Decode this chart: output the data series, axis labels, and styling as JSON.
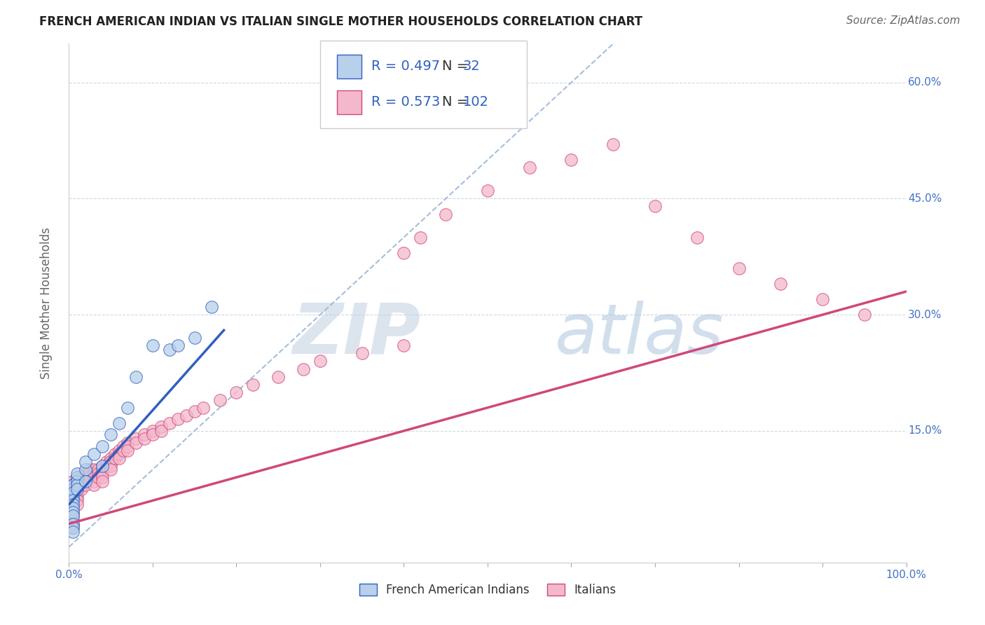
{
  "title": "FRENCH AMERICAN INDIAN VS ITALIAN SINGLE MOTHER HOUSEHOLDS CORRELATION CHART",
  "source": "Source: ZipAtlas.com",
  "ylabel": "Single Mother Households",
  "xlim": [
    0.0,
    1.0
  ],
  "ylim": [
    -0.02,
    0.65
  ],
  "xticks": [
    0.0,
    0.1,
    0.2,
    0.3,
    0.4,
    0.5,
    0.6,
    0.7,
    0.8,
    0.9,
    1.0
  ],
  "yticks": [
    0.0,
    0.15,
    0.3,
    0.45,
    0.6
  ],
  "ytick_labels": [
    "",
    "15.0%",
    "30.0%",
    "45.0%",
    "60.0%"
  ],
  "xtick_labels": [
    "0.0%",
    "",
    "",
    "",
    "",
    "",
    "",
    "",
    "",
    "",
    "100.0%"
  ],
  "blue_R": 0.497,
  "blue_N": 32,
  "pink_R": 0.573,
  "pink_N": 102,
  "blue_color": "#b8d0ea",
  "pink_color": "#f4b8cc",
  "blue_line_color": "#3060c0",
  "pink_line_color": "#d04878",
  "ref_line_color": "#9bb8d8",
  "background_color": "#ffffff",
  "watermark_color": "#d0dff0",
  "blue_scatter_x": [
    0.005,
    0.005,
    0.005,
    0.005,
    0.005,
    0.005,
    0.005,
    0.005,
    0.005,
    0.01,
    0.01,
    0.01,
    0.01,
    0.01,
    0.02,
    0.02,
    0.02,
    0.03,
    0.04,
    0.04,
    0.05,
    0.06,
    0.07,
    0.08,
    0.1,
    0.12,
    0.13,
    0.15,
    0.17,
    0.005,
    0.005,
    0.005
  ],
  "blue_scatter_y": [
    0.065,
    0.075,
    0.08,
    0.07,
    0.06,
    0.055,
    0.05,
    0.045,
    0.04,
    0.09,
    0.085,
    0.08,
    0.075,
    0.095,
    0.1,
    0.11,
    0.085,
    0.12,
    0.13,
    0.105,
    0.145,
    0.16,
    0.18,
    0.22,
    0.26,
    0.255,
    0.26,
    0.27,
    0.31,
    0.03,
    0.025,
    0.02
  ],
  "pink_scatter_x": [
    0.005,
    0.005,
    0.005,
    0.005,
    0.005,
    0.005,
    0.005,
    0.005,
    0.005,
    0.005,
    0.005,
    0.005,
    0.005,
    0.005,
    0.005,
    0.005,
    0.005,
    0.005,
    0.005,
    0.005,
    0.01,
    0.01,
    0.01,
    0.01,
    0.01,
    0.01,
    0.01,
    0.01,
    0.015,
    0.015,
    0.015,
    0.015,
    0.02,
    0.02,
    0.02,
    0.02,
    0.025,
    0.025,
    0.025,
    0.03,
    0.03,
    0.03,
    0.03,
    0.03,
    0.035,
    0.035,
    0.035,
    0.04,
    0.04,
    0.04,
    0.04,
    0.04,
    0.045,
    0.045,
    0.05,
    0.05,
    0.05,
    0.05,
    0.055,
    0.055,
    0.06,
    0.06,
    0.06,
    0.065,
    0.065,
    0.07,
    0.07,
    0.07,
    0.08,
    0.08,
    0.09,
    0.09,
    0.1,
    0.1,
    0.11,
    0.11,
    0.12,
    0.13,
    0.14,
    0.15,
    0.16,
    0.18,
    0.2,
    0.22,
    0.25,
    0.28,
    0.3,
    0.35,
    0.4,
    0.4,
    0.42,
    0.45,
    0.5,
    0.55,
    0.6,
    0.65,
    0.7,
    0.75,
    0.8,
    0.85,
    0.9,
    0.95
  ],
  "pink_scatter_y": [
    0.065,
    0.07,
    0.075,
    0.08,
    0.085,
    0.06,
    0.055,
    0.05,
    0.045,
    0.04,
    0.035,
    0.03,
    0.025,
    0.08,
    0.075,
    0.07,
    0.065,
    0.06,
    0.055,
    0.05,
    0.09,
    0.085,
    0.08,
    0.075,
    0.07,
    0.065,
    0.06,
    0.055,
    0.09,
    0.085,
    0.08,
    0.075,
    0.095,
    0.09,
    0.085,
    0.08,
    0.1,
    0.095,
    0.09,
    0.1,
    0.095,
    0.09,
    0.085,
    0.08,
    0.1,
    0.095,
    0.09,
    0.105,
    0.1,
    0.095,
    0.09,
    0.085,
    0.11,
    0.105,
    0.115,
    0.11,
    0.105,
    0.1,
    0.12,
    0.115,
    0.125,
    0.12,
    0.115,
    0.13,
    0.125,
    0.135,
    0.13,
    0.125,
    0.14,
    0.135,
    0.145,
    0.14,
    0.15,
    0.145,
    0.155,
    0.15,
    0.16,
    0.165,
    0.17,
    0.175,
    0.18,
    0.19,
    0.2,
    0.21,
    0.22,
    0.23,
    0.24,
    0.25,
    0.26,
    0.38,
    0.4,
    0.43,
    0.46,
    0.49,
    0.5,
    0.52,
    0.44,
    0.4,
    0.36,
    0.34,
    0.32,
    0.3
  ],
  "blue_line_x": [
    0.0,
    0.185
  ],
  "blue_line_y": [
    0.055,
    0.28
  ],
  "pink_line_x": [
    0.0,
    1.0
  ],
  "pink_line_y": [
    0.03,
    0.33
  ],
  "ref_line_x": [
    0.0,
    0.65
  ],
  "ref_line_y": [
    0.0,
    0.65
  ],
  "title_fontsize": 12,
  "source_fontsize": 11,
  "axis_fontsize": 12,
  "tick_fontsize": 11,
  "legend_fontsize": 14,
  "tick_color": "#4472c4",
  "axis_label_color": "#666666",
  "title_color": "#222222"
}
